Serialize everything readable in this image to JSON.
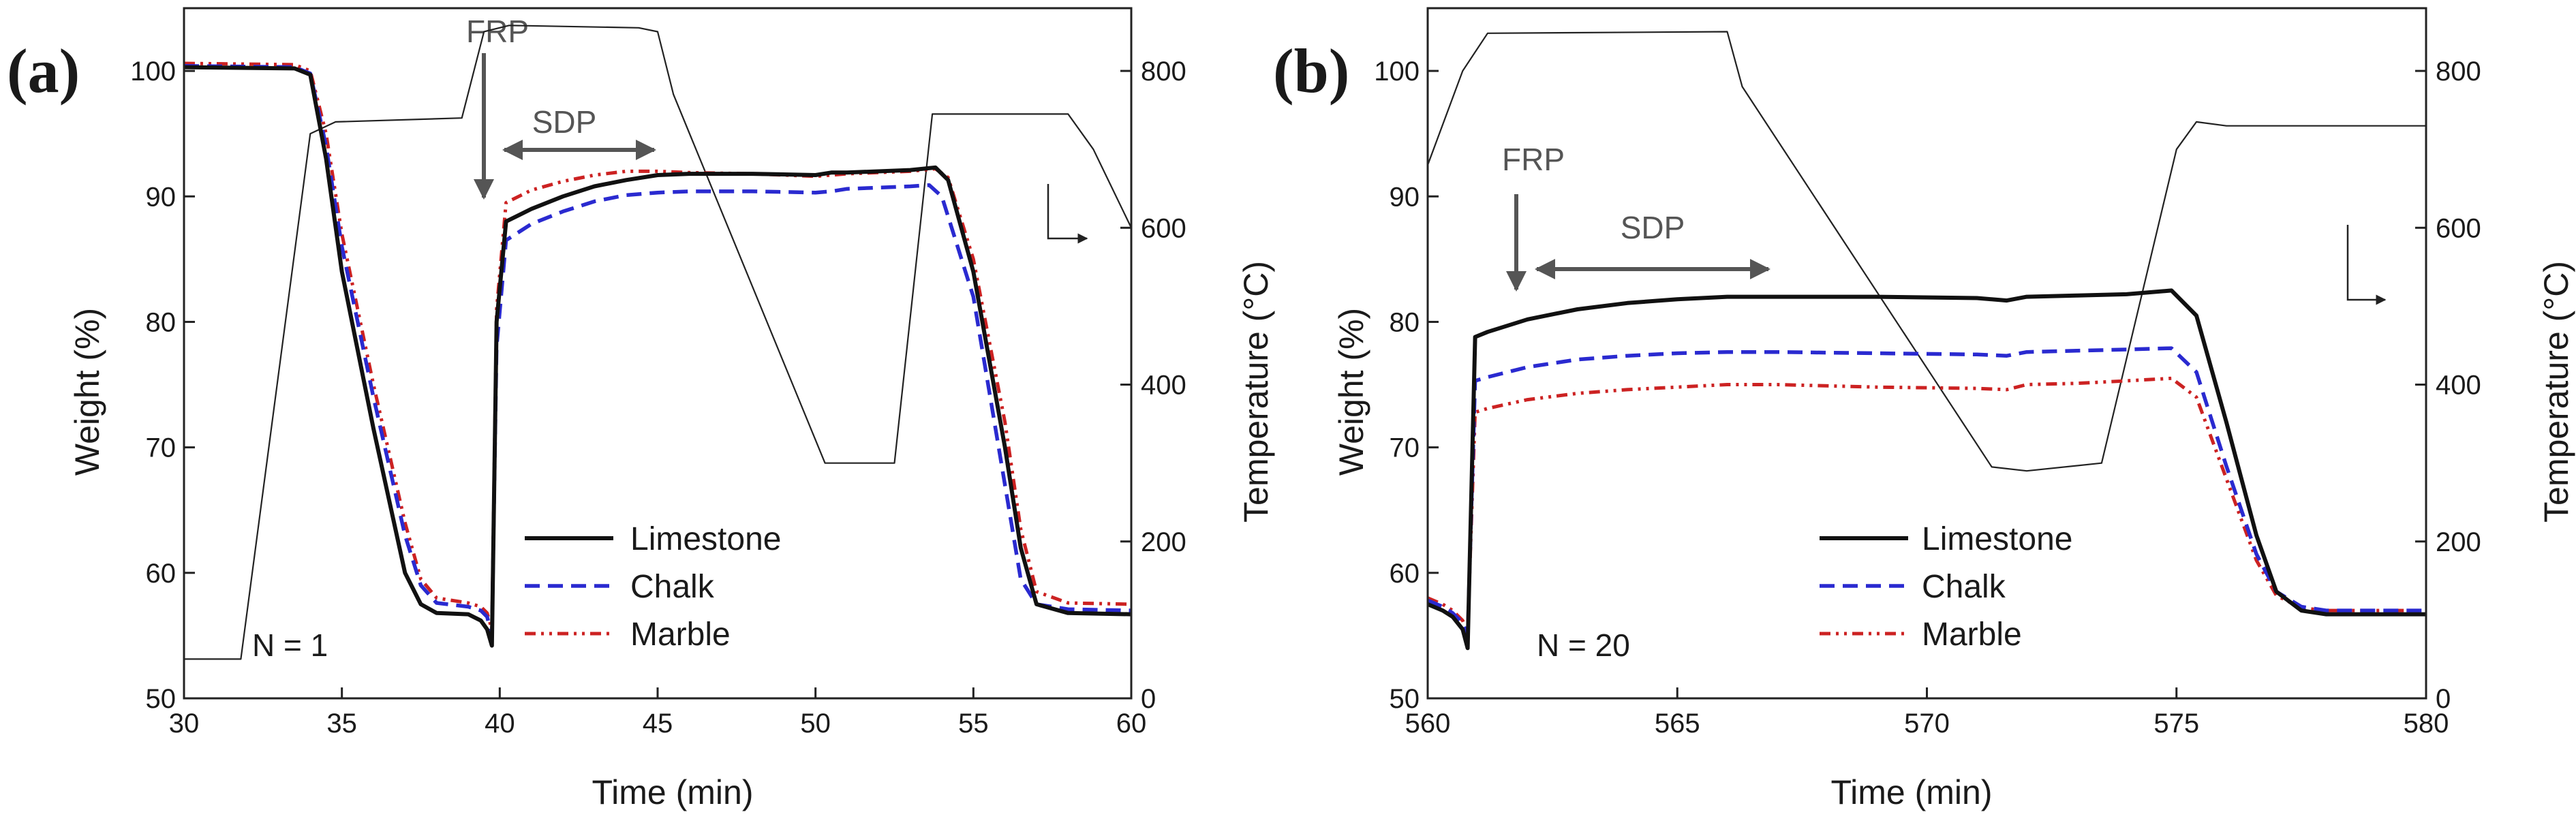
{
  "colors": {
    "limestone": "#111111",
    "chalk": "#2a2ad0",
    "marble": "#cc2222",
    "temperature": "#222222",
    "annotation": "#555555"
  },
  "chart_data": [
    {
      "type": "line",
      "panel_label": "(a)",
      "xlabel": "Time (min)",
      "ylabel": "Weight (%)",
      "y2label": "Temperature (°C)",
      "xlim": [
        30,
        60
      ],
      "ylim": [
        50,
        105
      ],
      "y2lim": [
        0,
        880
      ],
      "xticks": [
        "30",
        "35",
        "40",
        "45",
        "50",
        "55",
        "60"
      ],
      "yticks": [
        "50",
        "60",
        "70",
        "80",
        "90",
        "100"
      ],
      "y2ticks": [
        "0",
        "200",
        "400",
        "600",
        "800"
      ],
      "cycle_label": "N = 1",
      "annotations": {
        "frp": "FRP",
        "sdp": "SDP"
      },
      "legend": [
        "Limestone",
        "Chalk",
        "Marble"
      ],
      "series": [
        {
          "name": "Limestone",
          "axis": "left",
          "style": "solid",
          "x": [
            30,
            33.5,
            34,
            34.5,
            35,
            36,
            37,
            37.5,
            38,
            39,
            39.4,
            39.6,
            39.75,
            39.9,
            40.2,
            41,
            42,
            43,
            44,
            45,
            46,
            48,
            50,
            50.5,
            51,
            53,
            53.8,
            54.2,
            55,
            56,
            56.5,
            57,
            58,
            60
          ],
          "y": [
            100.3,
            100.2,
            99.7,
            93,
            84,
            71.5,
            60,
            57.5,
            56.8,
            56.7,
            56.2,
            55.5,
            54.2,
            80,
            88,
            89,
            90,
            90.8,
            91.3,
            91.7,
            91.8,
            91.8,
            91.7,
            91.9,
            91.9,
            92.1,
            92.3,
            91.3,
            84,
            70,
            62,
            57.5,
            56.8,
            56.7
          ]
        },
        {
          "name": "Chalk",
          "axis": "left",
          "style": "dashed",
          "x": [
            30,
            33.5,
            34,
            34.5,
            35,
            36,
            37,
            37.5,
            38,
            39,
            39.4,
            39.6,
            39.75,
            39.9,
            40.2,
            41,
            42,
            43,
            44,
            45,
            46,
            48,
            50,
            50.5,
            51,
            53,
            53.6,
            54,
            55,
            56,
            56.5,
            57,
            58,
            60
          ],
          "y": [
            100.4,
            100.3,
            99.8,
            94,
            86,
            74,
            63,
            59,
            57.6,
            57.3,
            57.0,
            56.5,
            55.0,
            78,
            86.5,
            87.8,
            88.8,
            89.6,
            90.1,
            90.3,
            90.4,
            90.4,
            90.3,
            90.4,
            90.6,
            90.8,
            90.9,
            90.0,
            82,
            67,
            59.5,
            57.5,
            57.1,
            57.0
          ]
        },
        {
          "name": "Marble",
          "axis": "left",
          "style": "dashdot",
          "x": [
            30,
            33.5,
            34,
            34.5,
            35,
            36,
            37,
            37.5,
            38,
            39,
            39.4,
            39.6,
            39.75,
            39.9,
            40.2,
            41,
            42,
            43,
            44,
            45,
            46,
            48,
            50,
            50.5,
            51,
            53,
            53.8,
            54.2,
            55,
            56,
            56.5,
            57,
            58,
            60
          ],
          "y": [
            100.6,
            100.5,
            100.0,
            95,
            87,
            75,
            64,
            59.5,
            58,
            57.6,
            57.3,
            56.8,
            55.5,
            81,
            89.5,
            90.5,
            91.2,
            91.7,
            92.0,
            92.0,
            91.9,
            91.8,
            91.6,
            91.7,
            91.8,
            92.0,
            92.2,
            91.5,
            85,
            72,
            63.5,
            58.5,
            57.6,
            57.5
          ]
        },
        {
          "name": "Temperature",
          "axis": "right",
          "style": "thin",
          "x": [
            30,
            31.8,
            34.0,
            34.8,
            38.8,
            39.5,
            40.3,
            44.4,
            45.0,
            45.5,
            50.3,
            52.5,
            53.7,
            54.1,
            58.0,
            58.8,
            60
          ],
          "y": [
            50,
            50,
            720,
            735,
            740,
            850,
            858,
            855,
            850,
            770,
            300,
            300,
            745,
            745,
            745,
            700,
            600
          ]
        }
      ]
    },
    {
      "type": "line",
      "panel_label": "(b)",
      "xlabel": "Time (min)",
      "ylabel": "Weight (%)",
      "y2label": "Temperature (°C)",
      "xlim": [
        560,
        580
      ],
      "ylim": [
        50,
        105
      ],
      "y2lim": [
        0,
        880
      ],
      "xticks": [
        "560",
        "565",
        "570",
        "575",
        "580"
      ],
      "yticks": [
        "50",
        "60",
        "70",
        "80",
        "90",
        "100"
      ],
      "y2ticks": [
        "0",
        "200",
        "400",
        "600",
        "800"
      ],
      "cycle_label": "N = 20",
      "annotations": {
        "frp": "FRP",
        "sdp": "SDP"
      },
      "legend": [
        "Limestone",
        "Chalk",
        "Marble"
      ],
      "series": [
        {
          "name": "Limestone",
          "axis": "left",
          "style": "solid",
          "x": [
            560,
            560.3,
            560.5,
            560.7,
            560.8,
            560.95,
            561.2,
            562,
            563,
            564,
            565,
            566,
            567,
            569,
            571,
            571.6,
            572,
            573,
            574,
            574.9,
            575.4,
            576,
            576.6,
            577,
            577.5,
            578,
            580
          ],
          "y": [
            57.5,
            57.0,
            56.5,
            55.5,
            54.0,
            78.8,
            79.2,
            80.2,
            81.0,
            81.5,
            81.8,
            82.0,
            82.0,
            82.0,
            81.9,
            81.7,
            82.0,
            82.1,
            82.2,
            82.5,
            80.5,
            72,
            63,
            58.5,
            57.0,
            56.7,
            56.7
          ]
        },
        {
          "name": "Chalk",
          "axis": "left",
          "style": "dashed",
          "x": [
            560,
            560.3,
            560.5,
            560.7,
            560.8,
            560.95,
            561.2,
            562,
            563,
            564,
            565,
            566,
            567,
            569,
            571,
            571.6,
            572,
            573,
            574,
            574.9,
            575.4,
            576,
            576.6,
            577,
            577.5,
            578,
            580
          ],
          "y": [
            57.8,
            57.3,
            56.8,
            56.0,
            55.0,
            75.3,
            75.6,
            76.4,
            77.0,
            77.3,
            77.5,
            77.6,
            77.6,
            77.5,
            77.4,
            77.3,
            77.6,
            77.7,
            77.8,
            77.9,
            76.0,
            68.5,
            61.5,
            58.5,
            57.3,
            57.0,
            57.0
          ]
        },
        {
          "name": "Marble",
          "axis": "left",
          "style": "dashdot",
          "x": [
            560,
            560.3,
            560.5,
            560.7,
            560.8,
            560.95,
            561.2,
            562,
            563,
            564,
            565,
            566,
            567,
            569,
            571,
            571.6,
            572,
            573,
            574,
            574.9,
            575.4,
            576,
            576.6,
            577,
            577.5,
            578,
            580
          ],
          "y": [
            58.0,
            57.5,
            57.0,
            56.2,
            55.2,
            72.8,
            73.1,
            73.8,
            74.3,
            74.6,
            74.8,
            75.0,
            75.0,
            74.8,
            74.7,
            74.6,
            75.0,
            75.1,
            75.3,
            75.5,
            74.0,
            67.5,
            61.0,
            58.2,
            57.2,
            57.0,
            57.0
          ]
        },
        {
          "name": "Temperature",
          "axis": "right",
          "style": "thin",
          "x": [
            560,
            560.7,
            561.2,
            566.0,
            566.3,
            571.3,
            572.0,
            573.5,
            575.0,
            575.4,
            576.0,
            580
          ],
          "y": [
            680,
            800,
            848,
            850,
            780,
            295,
            290,
            300,
            700,
            735,
            730,
            730
          ]
        }
      ]
    }
  ]
}
